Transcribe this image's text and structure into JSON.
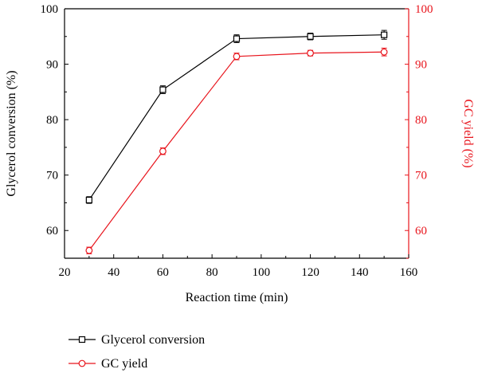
{
  "chart_data": {
    "type": "line",
    "xlabel": "Reaction time (min)",
    "ylabel_left": "Glycerol conversion (%)",
    "ylabel_right": "GC yield (%)",
    "xlim": [
      20,
      160
    ],
    "xticks": [
      20,
      40,
      60,
      80,
      100,
      120,
      140,
      160
    ],
    "ylim": [
      55,
      100
    ],
    "yticks": [
      60,
      70,
      80,
      90,
      100
    ],
    "grid": false,
    "legend_position": "bottom-left",
    "x": [
      30,
      60,
      90,
      120,
      150
    ],
    "series": [
      {
        "name": "Glycerol conversion",
        "axis": "left",
        "color": "#000000",
        "marker": "square",
        "values": [
          65.5,
          85.4,
          94.6,
          95.0,
          95.3
        ],
        "errors": [
          0.6,
          0.7,
          0.7,
          0.6,
          0.8
        ]
      },
      {
        "name": "GC yield",
        "axis": "right",
        "color": "#e8141c",
        "marker": "circle",
        "values": [
          56.4,
          74.3,
          91.4,
          92.0,
          92.2
        ],
        "errors": [
          0.6,
          0.6,
          0.6,
          0.5,
          0.7
        ]
      }
    ]
  }
}
